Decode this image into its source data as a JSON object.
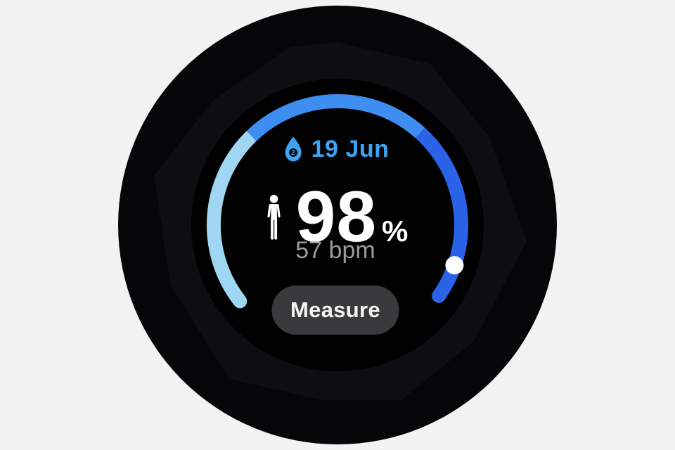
{
  "watch": {
    "date_row": {
      "icon": "spo2-drop-icon",
      "icon_symbol": "2",
      "label": "19 Jun"
    },
    "measurement": {
      "person_icon": "person-icon",
      "value": "98",
      "unit": "%",
      "secondary": "57 bpm"
    },
    "actions": {
      "measure_label": "Measure"
    },
    "ring": {
      "description": "blood-oxygen progress arc, clockwise from bottom-left, gap at bottom",
      "segments": [
        {
          "name": "segment-light",
          "color": "#9fd6f2",
          "start_deg": 232,
          "end_deg": 316
        },
        {
          "name": "segment-mid",
          "color": "#3e8ef2",
          "start_deg": 316,
          "end_deg": 402
        },
        {
          "name": "segment-deep",
          "color": "#2b63e8",
          "start_deg": 402,
          "end_deg": 485
        }
      ],
      "dot": {
        "deg": 109,
        "color": "#ffffff"
      }
    }
  },
  "colors": {
    "page_bg": "#f2f2f3",
    "watch_body": "#060608",
    "bezel_inner": "#0d0e11",
    "screen": "#010102",
    "date_blue": "#3fa2f2",
    "value_white": "#ffffff",
    "bpm_gray": "#9b9b9b",
    "button_bg": "#3a3a3c",
    "button_text": "#f5f5f5",
    "drop_hole": "#0c1016"
  }
}
